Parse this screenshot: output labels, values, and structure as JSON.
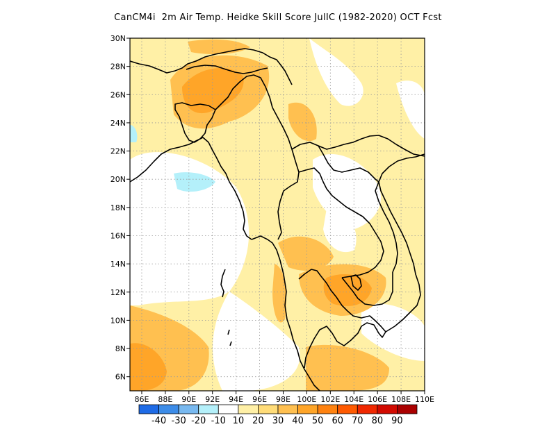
{
  "title": "CanCM4i  2m Air Temp. Heidke Skill Score JulIC (1982-2020) OCT Fcst",
  "map": {
    "lat_range": [
      5,
      30
    ],
    "lon_range": [
      85,
      110
    ],
    "lat_labels": [
      "30N",
      "28N",
      "26N",
      "24N",
      "22N",
      "20N",
      "18N",
      "16N",
      "14N",
      "12N",
      "10N",
      "8N",
      "6N"
    ],
    "lon_labels": [
      "86E",
      "88E",
      "90E",
      "92E",
      "94E",
      "96E",
      "98E",
      "100E",
      "102E",
      "104E",
      "106E",
      "108E",
      "110E"
    ]
  },
  "colorbar": {
    "colors": [
      "#1e6be6",
      "#3c8ce8",
      "#78b9f0",
      "#b4f0fa",
      "#ffffff",
      "#fff0a6",
      "#ffdc78",
      "#ffc050",
      "#ffa528",
      "#ff8210",
      "#ff5a00",
      "#f02800",
      "#d20a00",
      "#aa0000"
    ],
    "labels": [
      "-40",
      "-30",
      "-20",
      "-10",
      "10",
      "20",
      "30",
      "40",
      "50",
      "60",
      "70",
      "80",
      "90"
    ]
  },
  "chart_data": {
    "type": "heatmap",
    "title": "CanCM4i  2m Air Temp. Heidke Skill Score JulIC (1982-2020) OCT Fcst",
    "x_range": [
      85,
      110
    ],
    "y_range": [
      5,
      30
    ],
    "levels": [
      -40,
      -30,
      -20,
      -10,
      10,
      20,
      30,
      40,
      50,
      60,
      70,
      80,
      90
    ],
    "regions": [
      {
        "lon": 93.5,
        "lat": 27.0,
        "rx": 3.2,
        "ry": 2.2,
        "value": 30
      },
      {
        "lon": 92.5,
        "lat": 25.5,
        "rx": 2.0,
        "ry": 1.6,
        "value": 40
      },
      {
        "lon": 95.5,
        "lat": 24.5,
        "rx": 3.5,
        "ry": 3.0,
        "value": 20
      },
      {
        "lon": 99.0,
        "lat": 17.0,
        "rx": 2.5,
        "ry": 2.5,
        "value": 20
      },
      {
        "lon": 103.5,
        "lat": 12.5,
        "rx": 2.8,
        "ry": 2.0,
        "value": 40
      },
      {
        "lon": 98.5,
        "lat": 12.5,
        "rx": 1.2,
        "ry": 2.0,
        "value": 30
      },
      {
        "lon": 100.5,
        "lat": 14.5,
        "rx": 1.8,
        "ry": 1.5,
        "value": 30
      },
      {
        "lon": 86.5,
        "lat": 7.0,
        "rx": 2.5,
        "ry": 3.0,
        "value": 40
      },
      {
        "lon": 89.0,
        "lat": 9.0,
        "rx": 3.5,
        "ry": 3.5,
        "value": 30
      },
      {
        "lon": 102.0,
        "lat": 6.0,
        "rx": 3.5,
        "ry": 1.8,
        "value": 30
      },
      {
        "lon": 107.0,
        "lat": 20.0,
        "rx": 3.0,
        "ry": 6.0,
        "value": 20
      },
      {
        "lon": 92.0,
        "lat": 20.0,
        "rx": 1.6,
        "ry": 1.0,
        "value": -10
      }
    ]
  }
}
